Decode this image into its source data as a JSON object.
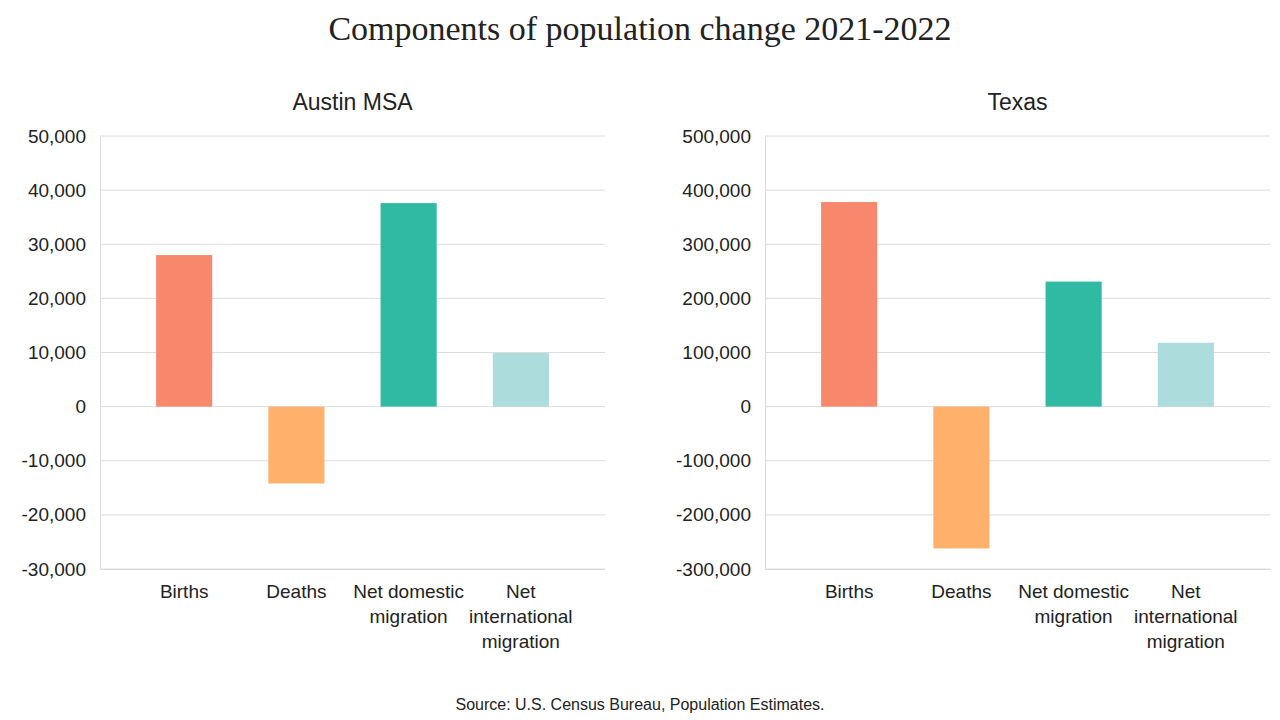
{
  "title": "Components of population change 2021-2022",
  "source": "Source: U.S. Census Bureau, Population Estimates.",
  "chart_data": [
    {
      "type": "bar",
      "title": "Austin MSA",
      "categories": [
        "Births",
        "Deaths",
        "Net domestic migration",
        "Net international migration"
      ],
      "values": [
        28000,
        -14200,
        37600,
        9900
      ],
      "colors": [
        "#f7886b",
        "#ffb06a",
        "#2fbba3",
        "#acdcdc"
      ],
      "ylim": [
        -30000,
        50000
      ],
      "yticks": [
        {
          "value": -30000,
          "label": "-30,000"
        },
        {
          "value": -20000,
          "label": "-20,000"
        },
        {
          "value": -10000,
          "label": "-10,000"
        },
        0,
        {
          "value": 10000,
          "label": "10,000"
        },
        {
          "value": 20000,
          "label": "20,000"
        },
        {
          "value": 30000,
          "label": "30,000"
        },
        {
          "value": 40000,
          "label": "40,000"
        },
        {
          "value": 50000,
          "label": "50,000"
        }
      ],
      "grid": true
    },
    {
      "type": "bar",
      "title": "Texas",
      "categories": [
        "Births",
        "Deaths",
        "Net domestic migration",
        "Net international migration"
      ],
      "values": [
        378000,
        -262000,
        231000,
        118000
      ],
      "colors": [
        "#f7886b",
        "#ffb06a",
        "#2fbba3",
        "#acdcdc"
      ],
      "ylim": [
        -300000,
        500000
      ],
      "yticks": [
        {
          "value": -300000,
          "label": "-300,000"
        },
        {
          "value": -200000,
          "label": "-200,000"
        },
        {
          "value": -100000,
          "label": "-100,000"
        },
        0,
        {
          "value": 100000,
          "label": "100,000"
        },
        {
          "value": 200000,
          "label": "200,000"
        },
        {
          "value": 300000,
          "label": "300,000"
        },
        {
          "value": 400000,
          "label": "400,000"
        },
        {
          "value": 500000,
          "label": "500,000"
        }
      ],
      "grid": true
    }
  ]
}
